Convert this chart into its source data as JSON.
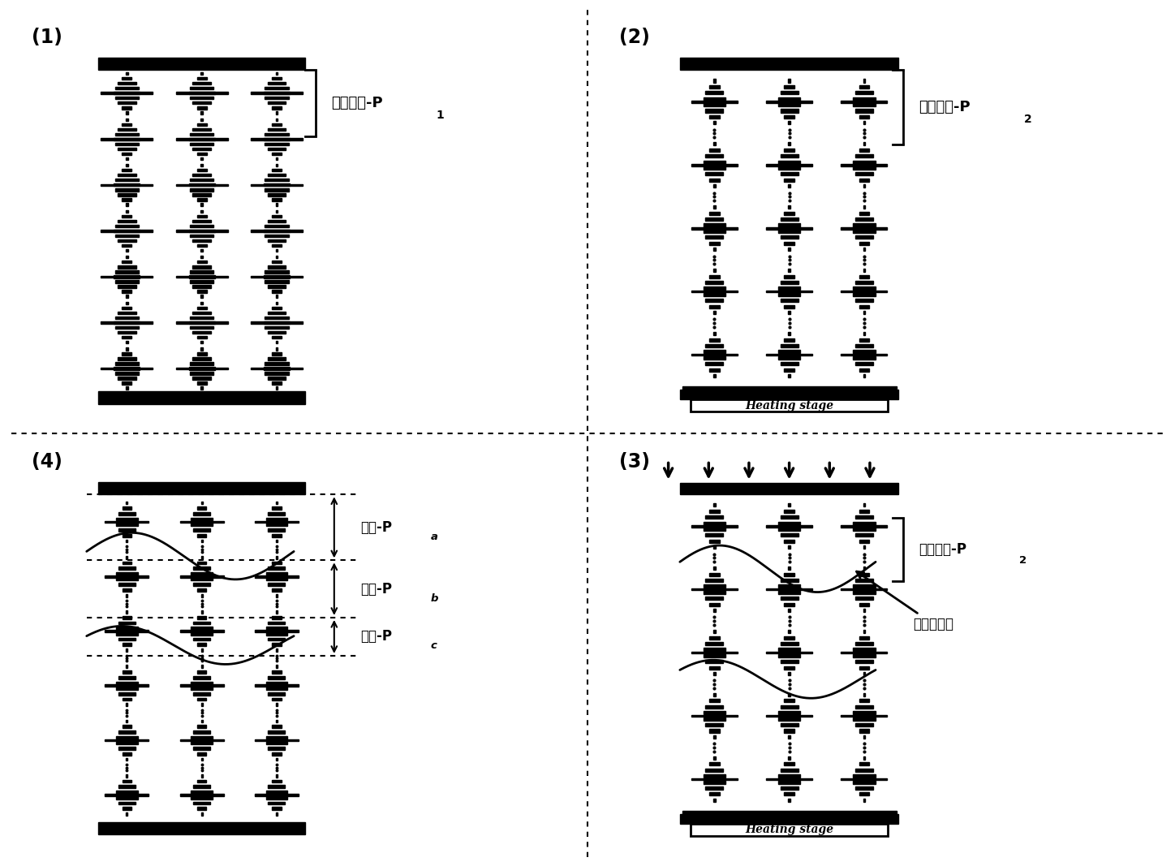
{
  "bg_color": "#ffffff",
  "label1": "(1)",
  "label2": "(2)",
  "label3": "(3)",
  "label4": "(4)",
  "pitch1": "单一螺距-P",
  "pitch1_sub": "1",
  "pitch2_a": "单一螺距-P",
  "pitch2_a_sub": "2",
  "pitch2_b": "单一螺距-P",
  "pitch2_b_sub": "2",
  "polymer_label": "聚合物网络",
  "pa_label": "螺距-P",
  "pa_sub": "a",
  "pb_label": "螺距-P",
  "pb_sub": "b",
  "pc_label": "螺距-P",
  "pc_sub": "c",
  "heating": "Heating stage",
  "black": "#000000",
  "white": "#ffffff",
  "font_name": "SimHei"
}
